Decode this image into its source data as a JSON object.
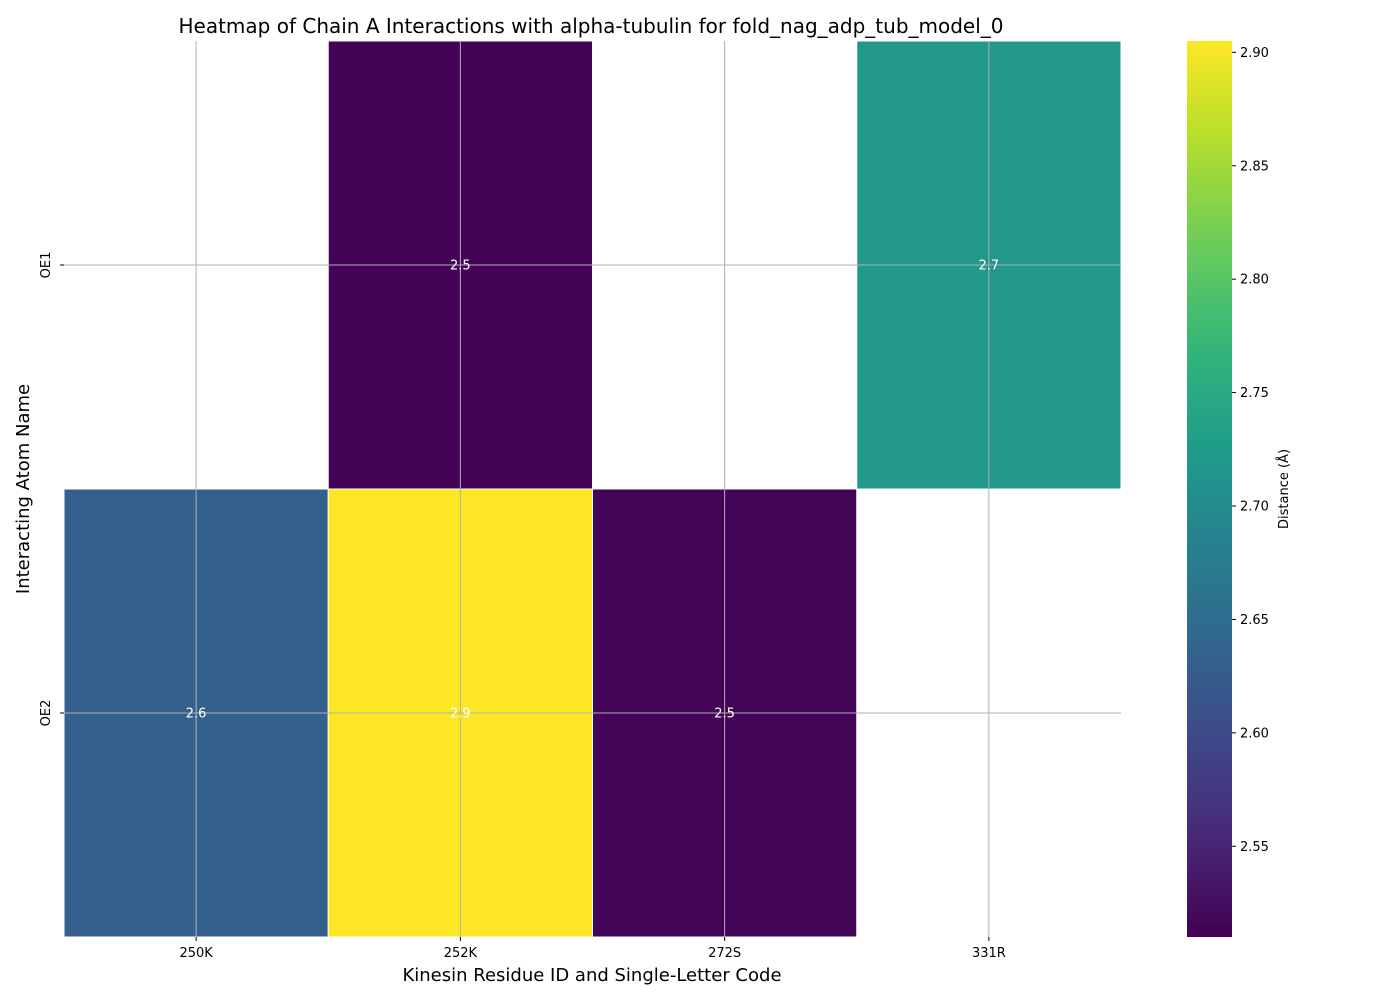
{
  "chart_data": {
    "type": "heatmap",
    "title": "Heatmap of Chain A Interactions with alpha-tubulin for fold_nag_adp_tub_model_0",
    "xlabel": "Kinesin Residue ID and Single-Letter Code",
    "ylabel": "Interacting Atom Name",
    "x_categories": [
      "250K",
      "252K",
      "272S",
      "331R"
    ],
    "y_categories": [
      "OE1",
      "OE2"
    ],
    "values": [
      [
        null,
        2.512,
        null,
        2.72
      ],
      [
        2.63,
        2.905,
        2.515,
        null
      ]
    ],
    "value_labels": [
      [
        "",
        "2.5",
        "",
        "2.7"
      ],
      [
        "2.6",
        "2.9",
        "2.5",
        ""
      ]
    ],
    "colorbar": {
      "label": "Distance (Å)",
      "min": 2.51,
      "max": 2.905,
      "colormap": "viridis",
      "ticks": [
        {
          "value": 2.55,
          "label": "2.55"
        },
        {
          "value": 2.6,
          "label": "2.60"
        },
        {
          "value": 2.65,
          "label": "2.65"
        },
        {
          "value": 2.7,
          "label": "2.70"
        },
        {
          "value": 2.75,
          "label": "2.75"
        },
        {
          "value": 2.8,
          "label": "2.80"
        },
        {
          "value": 2.85,
          "label": "2.85"
        },
        {
          "value": 2.9,
          "label": "2.90"
        }
      ]
    },
    "grid": true
  }
}
